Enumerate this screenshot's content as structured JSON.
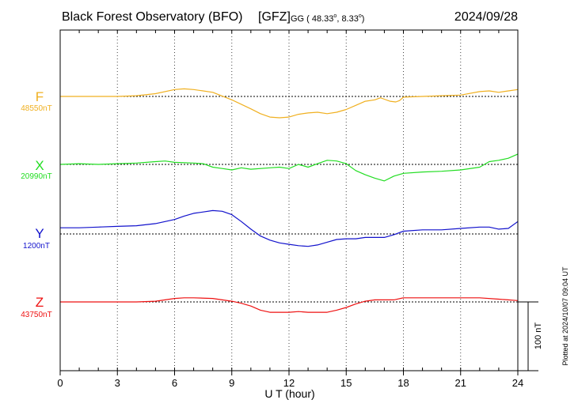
{
  "header": {
    "title": "Black Forest Observatory (BFO)",
    "institution": "[GFZ]",
    "coords_prefix": "GG ( 48.33",
    "coords_mid": ",   8.33",
    "coords_end": ")",
    "degree_mark": "o",
    "date": "2024/09/28"
  },
  "side_note": "Plotted at 2024/10/07 09:04 UT",
  "scale_bar": {
    "label": "100 nT",
    "value_nT": 100
  },
  "chart_data": {
    "type": "line",
    "xlabel": "U T (hour)",
    "xlim": [
      0,
      24
    ],
    "xticks": [
      "0",
      "3",
      "6",
      "9",
      "12",
      "15",
      "18",
      "21",
      "24"
    ],
    "grid": true,
    "series": [
      {
        "name": "F",
        "baseline_label": "48550nT",
        "baseline_nT": 48550,
        "color": "#f0b020",
        "points": [
          [
            0,
            48550
          ],
          [
            1,
            48550
          ],
          [
            2,
            48550
          ],
          [
            3,
            48550
          ],
          [
            4,
            48551
          ],
          [
            5,
            48554
          ],
          [
            6,
            48560
          ],
          [
            6.5,
            48561
          ],
          [
            7,
            48560
          ],
          [
            8,
            48556
          ],
          [
            9,
            48545
          ],
          [
            10,
            48532
          ],
          [
            10.5,
            48525
          ],
          [
            11,
            48520
          ],
          [
            11.5,
            48519
          ],
          [
            12,
            48520
          ],
          [
            12.5,
            48524
          ],
          [
            13,
            48526
          ],
          [
            13.5,
            48527
          ],
          [
            14,
            48525
          ],
          [
            14.5,
            48527
          ],
          [
            15,
            48531
          ],
          [
            15.5,
            48537
          ],
          [
            16,
            48543
          ],
          [
            16.5,
            48545
          ],
          [
            16.8,
            48548
          ],
          [
            17,
            48546
          ],
          [
            17.3,
            48543
          ],
          [
            17.6,
            48542
          ],
          [
            17.8,
            48544
          ],
          [
            18,
            48549
          ],
          [
            19,
            48550
          ],
          [
            20,
            48551
          ],
          [
            21,
            48552
          ],
          [
            22,
            48557
          ],
          [
            22.5,
            48558
          ],
          [
            23,
            48556
          ],
          [
            23.5,
            48558
          ],
          [
            24,
            48560
          ]
        ]
      },
      {
        "name": "X",
        "baseline_label": "20990nT",
        "baseline_nT": 20990,
        "color": "#22dd22",
        "points": [
          [
            0,
            20990
          ],
          [
            1,
            20991
          ],
          [
            2,
            20990
          ],
          [
            3,
            20991
          ],
          [
            4,
            20992
          ],
          [
            5,
            20994
          ],
          [
            5.5,
            20995
          ],
          [
            6,
            20993
          ],
          [
            7,
            20992
          ],
          [
            7.5,
            20991
          ],
          [
            8,
            20986
          ],
          [
            8.5,
            20984
          ],
          [
            9,
            20982
          ],
          [
            9.5,
            20985
          ],
          [
            10,
            20983
          ],
          [
            11,
            20985
          ],
          [
            11.5,
            20986
          ],
          [
            12,
            20984
          ],
          [
            12.5,
            20990
          ],
          [
            13,
            20986
          ],
          [
            13.5,
            20991
          ],
          [
            14,
            20996
          ],
          [
            14.5,
            20995
          ],
          [
            15,
            20991
          ],
          [
            15.5,
            20981
          ],
          [
            16,
            20975
          ],
          [
            16.5,
            20970
          ],
          [
            17,
            20966
          ],
          [
            17.5,
            20973
          ],
          [
            18,
            20977
          ],
          [
            19,
            20979
          ],
          [
            20,
            20980
          ],
          [
            21,
            20982
          ],
          [
            22,
            20986
          ],
          [
            22.5,
            20994
          ],
          [
            23,
            20996
          ],
          [
            23.5,
            20999
          ],
          [
            24,
            21005
          ]
        ]
      },
      {
        "name": "Y",
        "baseline_label": "1200nT",
        "baseline_nT": 1200,
        "color": "#1111cc",
        "points": [
          [
            0,
            1209
          ],
          [
            1,
            1209
          ],
          [
            2,
            1210
          ],
          [
            3,
            1211
          ],
          [
            4,
            1212
          ],
          [
            5,
            1215
          ],
          [
            5.5,
            1218
          ],
          [
            6,
            1221
          ],
          [
            6.5,
            1226
          ],
          [
            7,
            1230
          ],
          [
            7.5,
            1232
          ],
          [
            8,
            1234
          ],
          [
            8.5,
            1233
          ],
          [
            9,
            1228
          ],
          [
            9.5,
            1218
          ],
          [
            10,
            1207
          ],
          [
            10.5,
            1197
          ],
          [
            11,
            1191
          ],
          [
            11.5,
            1187
          ],
          [
            12,
            1185
          ],
          [
            12.5,
            1183
          ],
          [
            13,
            1182
          ],
          [
            13.5,
            1184
          ],
          [
            14,
            1188
          ],
          [
            14.5,
            1192
          ],
          [
            15,
            1193
          ],
          [
            15.5,
            1193
          ],
          [
            16,
            1195
          ],
          [
            16.5,
            1195
          ],
          [
            17,
            1195
          ],
          [
            17.5,
            1199
          ],
          [
            18,
            1204
          ],
          [
            19,
            1206
          ],
          [
            20,
            1206
          ],
          [
            21,
            1208
          ],
          [
            22,
            1210
          ],
          [
            22.5,
            1210
          ],
          [
            23,
            1207
          ],
          [
            23.5,
            1208
          ],
          [
            24,
            1218
          ]
        ]
      },
      {
        "name": "Z",
        "baseline_label": "43750nT",
        "baseline_nT": 43750,
        "color": "#ee1111",
        "points": [
          [
            0,
            43750
          ],
          [
            1,
            43750
          ],
          [
            2,
            43750
          ],
          [
            3,
            43750
          ],
          [
            4,
            43750
          ],
          [
            5,
            43751
          ],
          [
            6,
            43755
          ],
          [
            6.5,
            43756
          ],
          [
            7,
            43756
          ],
          [
            8,
            43755
          ],
          [
            9,
            43751
          ],
          [
            9.5,
            43748
          ],
          [
            10,
            43744
          ],
          [
            10.5,
            43738
          ],
          [
            11,
            43735
          ],
          [
            11.5,
            43735
          ],
          [
            12,
            43735
          ],
          [
            12.5,
            43736
          ],
          [
            13,
            43735
          ],
          [
            13.5,
            43735
          ],
          [
            14,
            43735
          ],
          [
            14.5,
            43738
          ],
          [
            15,
            43742
          ],
          [
            15.5,
            43747
          ],
          [
            16,
            43751
          ],
          [
            16.5,
            43753
          ],
          [
            17,
            43753
          ],
          [
            17.5,
            43753
          ],
          [
            18,
            43756
          ],
          [
            19,
            43756
          ],
          [
            20,
            43756
          ],
          [
            21,
            43756
          ],
          [
            22,
            43756
          ],
          [
            23,
            43754
          ],
          [
            23.5,
            43753
          ],
          [
            24,
            43752
          ]
        ]
      }
    ]
  }
}
